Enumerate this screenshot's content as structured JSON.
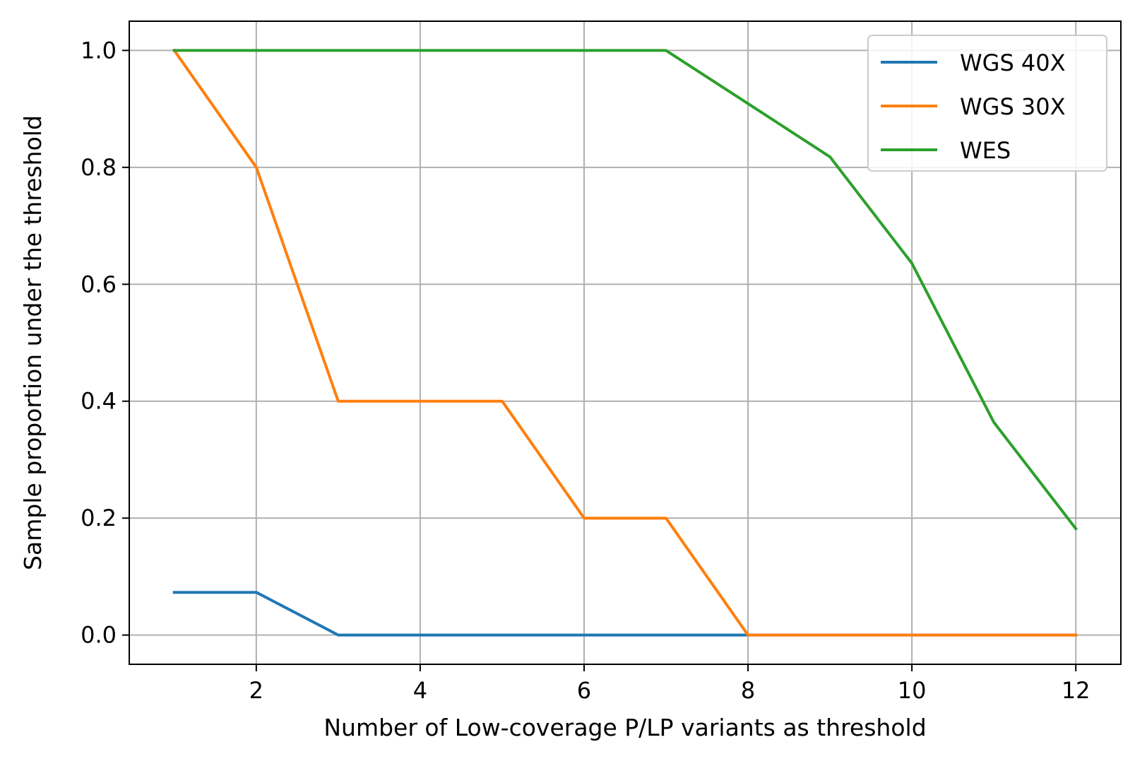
{
  "chart_data": {
    "type": "line",
    "title": "",
    "xlabel": "Number of Low-coverage P/LP variants as threshold",
    "ylabel": "Sample proportion under the threshold",
    "xlim": [
      0.45,
      12.55
    ],
    "ylim": [
      -0.05,
      1.05
    ],
    "x_ticks": [
      2,
      4,
      6,
      8,
      10,
      12
    ],
    "x_tick_labels": [
      "2",
      "4",
      "6",
      "8",
      "10",
      "12"
    ],
    "y_ticks": [
      0.0,
      0.2,
      0.4,
      0.6,
      0.8,
      1.0
    ],
    "y_tick_labels": [
      "0.0",
      "0.2",
      "0.4",
      "0.6",
      "0.8",
      "1.0"
    ],
    "grid": true,
    "legend_position": "top-right",
    "x": [
      1,
      2,
      3,
      4,
      5,
      6,
      7,
      8,
      9,
      10,
      11,
      12
    ],
    "series": [
      {
        "name": "WGS 40X",
        "color": "#1f77b4",
        "values": [
          0.073,
          0.073,
          0.0,
          0.0,
          0.0,
          0.0,
          0.0,
          0.0,
          0.0,
          0.0,
          0.0,
          0.0
        ]
      },
      {
        "name": "WGS 30X",
        "color": "#ff7f0e",
        "values": [
          1.0,
          0.8,
          0.4,
          0.4,
          0.4,
          0.2,
          0.2,
          0.0,
          0.0,
          0.0,
          0.0,
          0.0
        ]
      },
      {
        "name": "WES",
        "color": "#2ca02c",
        "values": [
          1.0,
          1.0,
          1.0,
          1.0,
          1.0,
          1.0,
          1.0,
          0.909,
          0.818,
          0.636,
          0.364,
          0.182
        ]
      }
    ]
  }
}
